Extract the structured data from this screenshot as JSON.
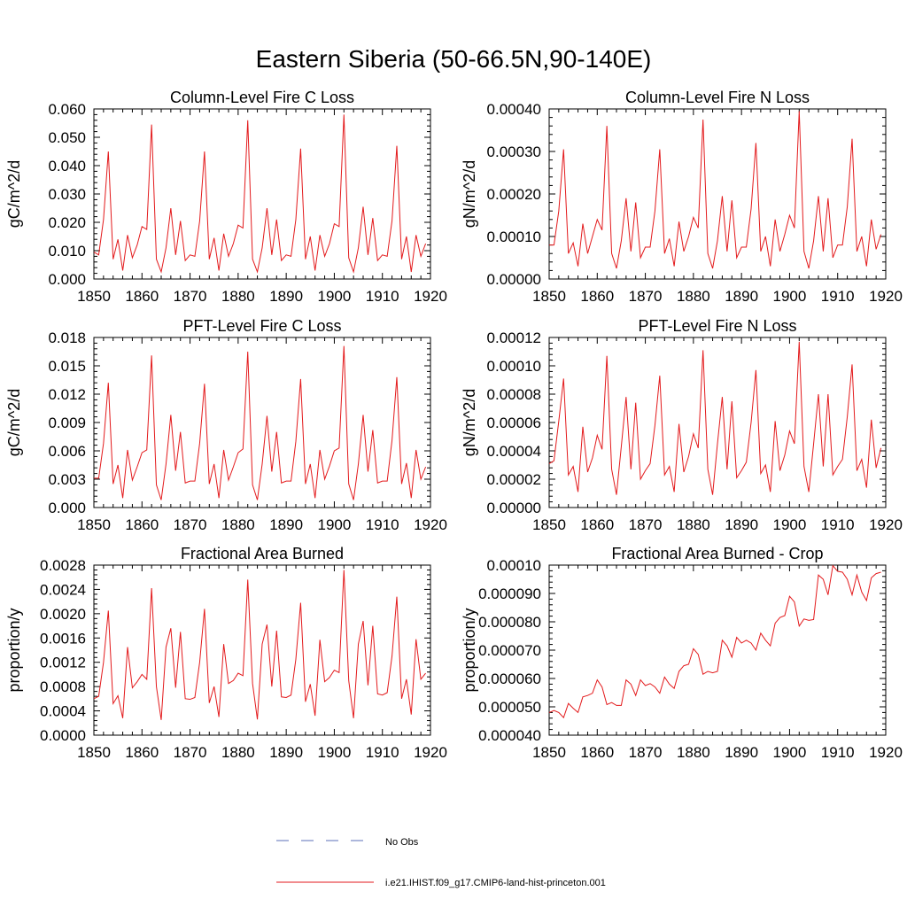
{
  "figure": {
    "title": "Eastern Siberia (50-66.5N,90-140E)",
    "legend": [
      {
        "label": "No Obs",
        "color": "#5b6fb8",
        "dash": true
      },
      {
        "label": "i.e21.IHIST.f09_g17.CMIP6-land-hist-princeton.001",
        "color": "#e31a1c",
        "dash": false
      }
    ]
  },
  "chart_data": [
    {
      "type": "line",
      "title": "Column-Level Fire C Loss",
      "ylabel": "gC/m^2/d",
      "xlim": [
        1850,
        1920
      ],
      "ylim": [
        0,
        0.06
      ],
      "xticks": [
        1850,
        1860,
        1870,
        1880,
        1890,
        1900,
        1910,
        1920
      ],
      "xtick_labels": [
        "1850",
        "1860",
        "1870",
        "1880",
        "1890",
        "1900",
        "1910",
        "1920"
      ],
      "yticks": [
        0,
        0.01,
        0.02,
        0.03,
        0.04,
        0.05,
        0.06
      ],
      "ytick_labels": [
        "0.000",
        "0.010",
        "0.020",
        "0.030",
        "0.040",
        "0.050",
        "0.060"
      ],
      "x0": 1850,
      "series": [
        {
          "color": "#e31a1c",
          "values": [
            0.0095,
            0.0085,
            0.021,
            0.045,
            0.007,
            0.014,
            0.003,
            0.0155,
            0.0075,
            0.012,
            0.0185,
            0.0175,
            0.0545,
            0.007,
            0.0025,
            0.011,
            0.025,
            0.0085,
            0.0205,
            0.0065,
            0.0085,
            0.008,
            0.0205,
            0.045,
            0.007,
            0.0145,
            0.003,
            0.016,
            0.008,
            0.0125,
            0.019,
            0.018,
            0.056,
            0.007,
            0.0025,
            0.011,
            0.025,
            0.0085,
            0.021,
            0.0065,
            0.0085,
            0.008,
            0.021,
            0.046,
            0.007,
            0.015,
            0.003,
            0.0155,
            0.008,
            0.0125,
            0.0195,
            0.0185,
            0.058,
            0.0075,
            0.0025,
            0.011,
            0.0255,
            0.0085,
            0.0215,
            0.0065,
            0.0085,
            0.008,
            0.0205,
            0.047,
            0.007,
            0.015,
            0.0025,
            0.0155,
            0.008,
            0.0125
          ]
        }
      ]
    },
    {
      "type": "line",
      "title": "Column-Level Fire N Loss",
      "ylabel": "gN/m^2/d",
      "xlim": [
        1850,
        1920
      ],
      "ylim": [
        0,
        0.0004
      ],
      "xticks": [
        1850,
        1860,
        1870,
        1880,
        1890,
        1900,
        1910,
        1920
      ],
      "xtick_labels": [
        "1850",
        "1860",
        "1870",
        "1880",
        "1890",
        "1900",
        "1910",
        "1920"
      ],
      "yticks": [
        0,
        0.0001,
        0.0002,
        0.0003,
        0.0004
      ],
      "ytick_labels": [
        "0.00000",
        "0.00010",
        "0.00020",
        "0.00030",
        "0.00040"
      ],
      "x0": 1850,
      "series": [
        {
          "color": "#e31a1c",
          "values": [
            8e-05,
            8e-05,
            0.00016,
            0.000305,
            6e-05,
            8.5e-05,
            3e-05,
            0.00013,
            6e-05,
            0.0001,
            0.00014,
            0.000115,
            0.00036,
            6e-05,
            2.5e-05,
            9e-05,
            0.00019,
            6.5e-05,
            0.00018,
            5e-05,
            7.5e-05,
            7.5e-05,
            0.00016,
            0.000305,
            6e-05,
            9.5e-05,
            3e-05,
            0.000135,
            6.5e-05,
            0.0001,
            0.000145,
            0.00012,
            0.000375,
            6e-05,
            2.5e-05,
            9e-05,
            0.000195,
            6.5e-05,
            0.000185,
            5e-05,
            7.5e-05,
            7.5e-05,
            0.000165,
            0.00032,
            6.5e-05,
            0.0001,
            3e-05,
            0.00014,
            6.5e-05,
            0.000105,
            0.00015,
            0.00012,
            0.000395,
            6.5e-05,
            2.5e-05,
            9e-05,
            0.000195,
            6.5e-05,
            0.00019,
            5e-05,
            8e-05,
            8e-05,
            0.00017,
            0.00033,
            6.5e-05,
            0.0001,
            3e-05,
            0.00014,
            7e-05,
            0.000105
          ]
        }
      ]
    },
    {
      "type": "line",
      "title": "PFT-Level Fire C Loss",
      "ylabel": "gC/m^2/d",
      "xlim": [
        1850,
        1920
      ],
      "ylim": [
        0,
        0.018
      ],
      "xticks": [
        1850,
        1860,
        1870,
        1880,
        1890,
        1900,
        1910,
        1920
      ],
      "xtick_labels": [
        "1850",
        "1860",
        "1870",
        "1880",
        "1890",
        "1900",
        "1910",
        "1920"
      ],
      "yticks": [
        0,
        0.003,
        0.006,
        0.009,
        0.012,
        0.015,
        0.018
      ],
      "ytick_labels": [
        "0.000",
        "0.003",
        "0.006",
        "0.009",
        "0.012",
        "0.015",
        "0.018"
      ],
      "x0": 1850,
      "series": [
        {
          "color": "#e31a1c",
          "values": [
            0.0031,
            0.0031,
            0.0068,
            0.0132,
            0.0025,
            0.0045,
            0.001,
            0.0061,
            0.0029,
            0.0043,
            0.0058,
            0.0061,
            0.0161,
            0.0024,
            0.0008,
            0.0046,
            0.0098,
            0.0039,
            0.008,
            0.0026,
            0.0028,
            0.0028,
            0.0068,
            0.0131,
            0.0025,
            0.0046,
            0.001,
            0.0061,
            0.0029,
            0.0043,
            0.0058,
            0.0062,
            0.0165,
            0.0024,
            0.0008,
            0.0046,
            0.0097,
            0.0038,
            0.008,
            0.0026,
            0.0028,
            0.0028,
            0.007,
            0.0136,
            0.0025,
            0.0046,
            0.001,
            0.0061,
            0.003,
            0.0044,
            0.006,
            0.0063,
            0.0171,
            0.0025,
            0.0008,
            0.0046,
            0.0098,
            0.0038,
            0.0082,
            0.0026,
            0.0028,
            0.0028,
            0.0071,
            0.0138,
            0.0025,
            0.0047,
            0.001,
            0.0061,
            0.003,
            0.0043
          ]
        }
      ]
    },
    {
      "type": "line",
      "title": "PFT-Level Fire N Loss",
      "ylabel": "gN/m^2/d",
      "xlim": [
        1850,
        1920
      ],
      "ylim": [
        0,
        0.00012
      ],
      "xticks": [
        1850,
        1860,
        1870,
        1880,
        1890,
        1900,
        1910,
        1920
      ],
      "xtick_labels": [
        "1850",
        "1860",
        "1870",
        "1880",
        "1890",
        "1900",
        "1910",
        "1920"
      ],
      "yticks": [
        0,
        2e-05,
        4e-05,
        6e-05,
        8e-05,
        0.0001,
        0.00012
      ],
      "ytick_labels": [
        "0.00000",
        "0.00002",
        "0.00004",
        "0.00006",
        "0.00008",
        "0.00010",
        "0.00012"
      ],
      "x0": 1850,
      "series": [
        {
          "color": "#e31a1c",
          "values": [
            3.1e-05,
            3.3e-05,
            6.1e-05,
            9.1e-05,
            2.3e-05,
            2.9e-05,
            1.1e-05,
            5.7e-05,
            2.5e-05,
            3.5e-05,
            5.1e-05,
            4.1e-05,
            0.000107,
            2.7e-05,
            9e-06,
            4.3e-05,
            7.8e-05,
            2.7e-05,
            7.4e-05,
            2e-05,
            2.6e-05,
            3.1e-05,
            5.8e-05,
            9.3e-05,
            2.3e-05,
            2.9e-05,
            1.1e-05,
            5.9e-05,
            2.5e-05,
            3.6e-05,
            5.2e-05,
            4.2e-05,
            0.000111,
            2.7e-05,
            9e-06,
            4.5e-05,
            7.8e-05,
            2.7e-05,
            7.5e-05,
            2.1e-05,
            2.6e-05,
            3.2e-05,
            6e-05,
            9.7e-05,
            2.4e-05,
            3e-05,
            1.1e-05,
            6.1e-05,
            2.6e-05,
            3.7e-05,
            5.4e-05,
            4.5e-05,
            0.000117,
            2.9e-05,
            1.1e-05,
            4.5e-05,
            8e-05,
            2.9e-05,
            8e-05,
            2.3e-05,
            2.9e-05,
            3.4e-05,
            6.4e-05,
            0.000101,
            2.6e-05,
            3.4e-05,
            1.4e-05,
            6.2e-05,
            2.8e-05,
            4.2e-05
          ]
        }
      ]
    },
    {
      "type": "line",
      "title": "Fractional Area Burned",
      "ylabel": "proportion/y",
      "xlim": [
        1850,
        1920
      ],
      "ylim": [
        0,
        0.0028
      ],
      "xticks": [
        1850,
        1860,
        1870,
        1880,
        1890,
        1900,
        1910,
        1920
      ],
      "xtick_labels": [
        "1850",
        "1860",
        "1870",
        "1880",
        "1890",
        "1900",
        "1910",
        "1920"
      ],
      "yticks": [
        0,
        0.0004,
        0.0008,
        0.0012,
        0.0016,
        0.002,
        0.0024,
        0.0028
      ],
      "ytick_labels": [
        "0.0000",
        "0.0004",
        "0.0008",
        "0.0012",
        "0.0016",
        "0.0020",
        "0.0024",
        "0.0028"
      ],
      "x0": 1850,
      "series": [
        {
          "color": "#e31a1c",
          "values": [
            0.0006,
            0.00064,
            0.0012,
            0.00205,
            0.00052,
            0.00065,
            0.00028,
            0.00145,
            0.00078,
            0.00088,
            0.001,
            0.00092,
            0.00242,
            0.0008,
            0.00025,
            0.00145,
            0.00176,
            0.00078,
            0.0017,
            0.0006,
            0.00059,
            0.00062,
            0.0012,
            0.00208,
            0.00053,
            0.0008,
            0.0003,
            0.0015,
            0.00085,
            0.0009,
            0.00102,
            0.00098,
            0.00256,
            0.00085,
            0.00026,
            0.0015,
            0.00182,
            0.0008,
            0.00172,
            0.00063,
            0.00062,
            0.00066,
            0.00125,
            0.00218,
            0.00055,
            0.00084,
            0.00032,
            0.00157,
            0.00088,
            0.00095,
            0.00107,
            0.00103,
            0.00272,
            0.0009,
            0.00028,
            0.0015,
            0.00188,
            0.00082,
            0.0018,
            0.00068,
            0.00066,
            0.0007,
            0.0013,
            0.00228,
            0.0006,
            0.00092,
            0.00034,
            0.00158,
            0.00092,
            0.00102
          ]
        }
      ]
    },
    {
      "type": "line",
      "title": "Fractional Area Burned - Crop",
      "ylabel": "proportion/y",
      "xlim": [
        1850,
        1920
      ],
      "ylim": [
        4e-05,
        0.0001
      ],
      "xticks": [
        1850,
        1860,
        1870,
        1880,
        1890,
        1900,
        1910,
        1920
      ],
      "xtick_labels": [
        "1850",
        "1860",
        "1870",
        "1880",
        "1890",
        "1900",
        "1910",
        "1920"
      ],
      "yticks": [
        4e-05,
        5e-05,
        6e-05,
        7e-05,
        8e-05,
        9e-05,
        0.0001
      ],
      "ytick_labels": [
        "0.000040",
        "0.000050",
        "0.000060",
        "0.000070",
        "0.000080",
        "0.000090",
        "0.00010"
      ],
      "x0": 1850,
      "series": [
        {
          "color": "#e31a1c",
          "values": [
            4.8e-05,
            4.87e-05,
            4.8e-05,
            4.62e-05,
            5.12e-05,
            4.95e-05,
            4.8e-05,
            5.35e-05,
            5.4e-05,
            5.48e-05,
            5.95e-05,
            5.7e-05,
            5.08e-05,
            5.15e-05,
            5.05e-05,
            5.05e-05,
            5.95e-05,
            5.8e-05,
            5.4e-05,
            5.95e-05,
            5.75e-05,
            5.82e-05,
            5.7e-05,
            5.48e-05,
            6.05e-05,
            5.8e-05,
            5.65e-05,
            6.25e-05,
            6.45e-05,
            6.5e-05,
            7.05e-05,
            6.85e-05,
            6.15e-05,
            6.25e-05,
            6.2e-05,
            6.25e-05,
            7.35e-05,
            7.15e-05,
            6.75e-05,
            7.45e-05,
            7.25e-05,
            7.35e-05,
            7.25e-05,
            7e-05,
            7.6e-05,
            7.35e-05,
            7.15e-05,
            7.95e-05,
            8.15e-05,
            8.22e-05,
            8.9e-05,
            8.7e-05,
            7.85e-05,
            8.1e-05,
            8.05e-05,
            8.08e-05,
            9.65e-05,
            9.5e-05,
            8.95e-05,
            9.98e-05,
            9.78e-05,
            9.75e-05,
            9.5e-05,
            8.95e-05,
            9.65e-05,
            9.05e-05,
            8.75e-05,
            9.55e-05,
            9.7e-05,
            9.75e-05
          ]
        }
      ]
    }
  ]
}
